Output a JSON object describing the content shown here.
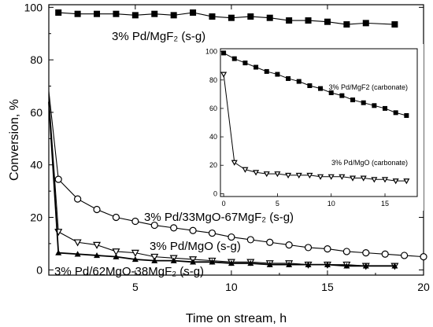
{
  "chart_data": [
    {
      "type": "line",
      "xlabel": "Time on stream, h",
      "ylabel": "Conversion, %",
      "xlim": [
        0.5,
        20
      ],
      "ylim": [
        -2,
        101
      ],
      "xticks": [
        5,
        10,
        15,
        20
      ],
      "yticks": [
        0,
        20,
        40,
        60,
        80,
        100
      ],
      "grid": false,
      "legend": "inline labels next to series",
      "series": [
        {
          "name": "3% Pd/MgF₂ (s-g)",
          "marker": "filled-square",
          "color": "#000000",
          "x": [
            1,
            2,
            3,
            4,
            5,
            6,
            7,
            8,
            9,
            10,
            11,
            12,
            13,
            14,
            15,
            16,
            17,
            18.5
          ],
          "y": [
            98,
            97.5,
            97.5,
            97.5,
            97,
            97.5,
            97,
            98,
            96.5,
            96,
            96.5,
            96,
            95,
            95,
            94.5,
            93.5,
            94,
            93.5
          ]
        },
        {
          "name": "3% Pd/33MgO-67MgF₂ (s-g)",
          "marker": "open-circle",
          "color": "#000000",
          "x": [
            0.5,
            1,
            2,
            3,
            4,
            5,
            6,
            7,
            8,
            9,
            10,
            11,
            12,
            13,
            14,
            15,
            16,
            17,
            18,
            19,
            20
          ],
          "y": [
            68,
            34.5,
            27,
            23,
            20,
            18.5,
            17,
            16,
            15,
            14,
            12.5,
            11.5,
            10.5,
            9.5,
            8.5,
            8,
            7,
            6.5,
            6,
            5.5,
            5
          ]
        },
        {
          "name": "3% Pd/MgO (s-g)",
          "marker": "open-triangle-down",
          "color": "#000000",
          "x": [
            0.5,
            1,
            2,
            3,
            4,
            5,
            6,
            7,
            8,
            9,
            10,
            11,
            12,
            13,
            14,
            15,
            16,
            17,
            18.5
          ],
          "y": [
            66,
            14.5,
            10.5,
            9.5,
            7,
            6.5,
            5,
            4.5,
            4,
            3.5,
            3,
            3,
            2.5,
            2.5,
            2,
            2,
            2,
            1.5,
            1.5
          ]
        },
        {
          "name": "3% Pd/62MgO-38MgF₂ (s-g)",
          "marker": "filled-triangle-up",
          "color": "#000000",
          "x": [
            0.5,
            1,
            2,
            3,
            4,
            5,
            6,
            7,
            8,
            9,
            10,
            11,
            12,
            13,
            14,
            15,
            16,
            17,
            18.5
          ],
          "y": [
            64,
            6.5,
            6,
            5.5,
            5,
            4,
            3.5,
            3.5,
            3,
            3,
            2.5,
            2.5,
            2,
            2,
            2,
            2,
            1.5,
            1.5,
            1.5
          ]
        }
      ]
    },
    {
      "type": "line",
      "xlim": [
        -0.3,
        18
      ],
      "ylim": [
        -2,
        102
      ],
      "xticks": [
        0,
        5,
        10,
        15
      ],
      "yticks": [
        0,
        20,
        40,
        60,
        80,
        100
      ],
      "grid": false,
      "legend": "inline labels next to series",
      "series": [
        {
          "name": "3% Pd/MgF2 (carbonate)",
          "marker": "filled-square",
          "color": "#000000",
          "x": [
            0,
            1,
            2,
            3,
            4,
            5,
            6,
            7,
            8,
            9,
            10,
            11,
            12,
            13,
            14,
            15,
            16,
            17
          ],
          "y": [
            99,
            95,
            92,
            89,
            86,
            84,
            81,
            79,
            76,
            74,
            71,
            69,
            66,
            64,
            62,
            60,
            57,
            55
          ]
        },
        {
          "name": "3% Pd/MgO (carbonate)",
          "marker": "open-triangle-down",
          "color": "#000000",
          "x": [
            0,
            1,
            2,
            3,
            4,
            5,
            6,
            7,
            8,
            9,
            10,
            11,
            12,
            13,
            14,
            15,
            16,
            17
          ],
          "y": [
            84,
            22,
            17,
            15,
            14,
            14,
            13,
            13,
            13,
            12,
            12,
            12,
            11,
            11,
            10,
            10,
            9,
            9
          ]
        }
      ]
    }
  ]
}
